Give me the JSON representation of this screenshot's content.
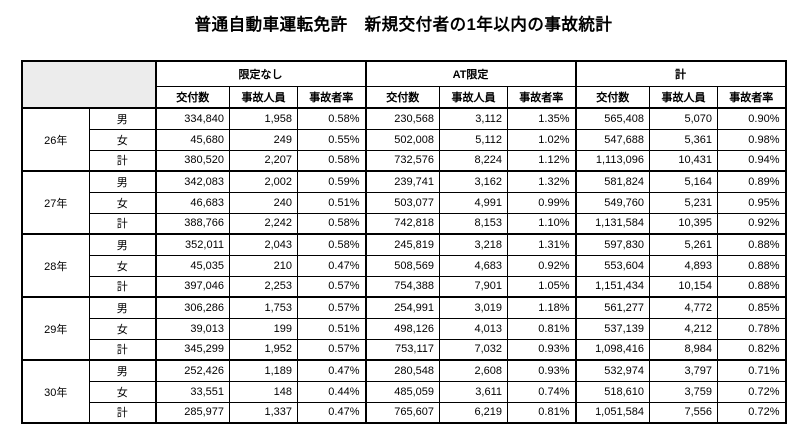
{
  "title": "普通自動車運転免許　新規交付者の1年以内の事故統計",
  "table": {
    "column_groups": [
      {
        "label": "限定なし"
      },
      {
        "label": "AT限定"
      },
      {
        "label": "計"
      }
    ],
    "metric_headers": [
      "交付数",
      "事故人員",
      "事故者率"
    ],
    "year_groups": [
      {
        "year": "26年",
        "rows": [
          {
            "label": "男",
            "values": [
              "334,840",
              "1,958",
              "0.58%",
              "230,568",
              "3,112",
              "1.35%",
              "565,408",
              "5,070",
              "0.90%"
            ]
          },
          {
            "label": "女",
            "values": [
              "45,680",
              "249",
              "0.55%",
              "502,008",
              "5,112",
              "1.02%",
              "547,688",
              "5,361",
              "0.98%"
            ]
          },
          {
            "label": "計",
            "values": [
              "380,520",
              "2,207",
              "0.58%",
              "732,576",
              "8,224",
              "1.12%",
              "1,113,096",
              "10,431",
              "0.94%"
            ]
          }
        ]
      },
      {
        "year": "27年",
        "rows": [
          {
            "label": "男",
            "values": [
              "342,083",
              "2,002",
              "0.59%",
              "239,741",
              "3,162",
              "1.32%",
              "581,824",
              "5,164",
              "0.89%"
            ]
          },
          {
            "label": "女",
            "values": [
              "46,683",
              "240",
              "0.51%",
              "503,077",
              "4,991",
              "0.99%",
              "549,760",
              "5,231",
              "0.95%"
            ]
          },
          {
            "label": "計",
            "values": [
              "388,766",
              "2,242",
              "0.58%",
              "742,818",
              "8,153",
              "1.10%",
              "1,131,584",
              "10,395",
              "0.92%"
            ]
          }
        ]
      },
      {
        "year": "28年",
        "rows": [
          {
            "label": "男",
            "values": [
              "352,011",
              "2,043",
              "0.58%",
              "245,819",
              "3,218",
              "1.31%",
              "597,830",
              "5,261",
              "0.88%"
            ]
          },
          {
            "label": "女",
            "values": [
              "45,035",
              "210",
              "0.47%",
              "508,569",
              "4,683",
              "0.92%",
              "553,604",
              "4,893",
              "0.88%"
            ]
          },
          {
            "label": "計",
            "values": [
              "397,046",
              "2,253",
              "0.57%",
              "754,388",
              "7,901",
              "1.05%",
              "1,151,434",
              "10,154",
              "0.88%"
            ]
          }
        ]
      },
      {
        "year": "29年",
        "rows": [
          {
            "label": "男",
            "values": [
              "306,286",
              "1,753",
              "0.57%",
              "254,991",
              "3,019",
              "1.18%",
              "561,277",
              "4,772",
              "0.85%"
            ]
          },
          {
            "label": "女",
            "values": [
              "39,013",
              "199",
              "0.51%",
              "498,126",
              "4,013",
              "0.81%",
              "537,139",
              "4,212",
              "0.78%"
            ]
          },
          {
            "label": "計",
            "values": [
              "345,299",
              "1,952",
              "0.57%",
              "753,117",
              "7,032",
              "0.93%",
              "1,098,416",
              "8,984",
              "0.82%"
            ]
          }
        ]
      },
      {
        "year": "30年",
        "rows": [
          {
            "label": "男",
            "values": [
              "252,426",
              "1,189",
              "0.47%",
              "280,548",
              "2,608",
              "0.93%",
              "532,974",
              "3,797",
              "0.71%"
            ]
          },
          {
            "label": "女",
            "values": [
              "33,551",
              "148",
              "0.44%",
              "485,059",
              "3,611",
              "0.74%",
              "518,610",
              "3,759",
              "0.72%"
            ]
          },
          {
            "label": "計",
            "values": [
              "285,977",
              "1,337",
              "0.47%",
              "765,607",
              "6,219",
              "0.81%",
              "1,051,584",
              "7,556",
              "0.72%"
            ]
          }
        ]
      }
    ]
  },
  "colors": {
    "corner_background": "#ececec",
    "border": "#000000",
    "page_background": "#ffffff",
    "text": "#000000"
  }
}
